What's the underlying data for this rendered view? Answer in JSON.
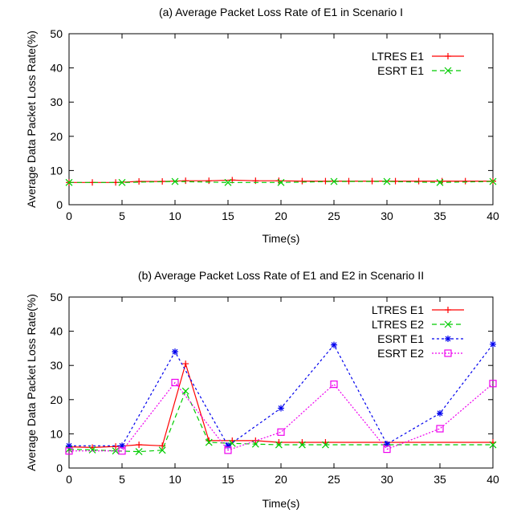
{
  "chart_data": [
    {
      "type": "line",
      "title": "(a) Average Packet Loss Rate of E1 in Scenario I",
      "xlabel": "Time(s)",
      "ylabel": "Average Data Packet Loss Rate(%)",
      "xlim": [
        0,
        40
      ],
      "ylim": [
        0,
        50
      ],
      "xticks": [
        "0",
        "5",
        "10",
        "15",
        "20",
        "25",
        "30",
        "35",
        "40"
      ],
      "yticks": [
        "0",
        "10",
        "20",
        "30",
        "40",
        "50"
      ],
      "grid": false,
      "legend_position": "top-right",
      "series": [
        {
          "name": "LTRES E1",
          "color": "#ff0000",
          "dash": "solid",
          "marker": "plus",
          "x": [
            0,
            2.2,
            4.4,
            6.6,
            8.8,
            11,
            13.2,
            15.4,
            17.6,
            19.8,
            22,
            24.2,
            26.4,
            28.6,
            30.8,
            33,
            35.2,
            37.4,
            40
          ],
          "y": [
            6.5,
            6.5,
            6.5,
            6.8,
            6.8,
            7.0,
            7.0,
            7.2,
            7.0,
            7.0,
            6.9,
            6.9,
            6.9,
            6.9,
            6.9,
            6.9,
            6.9,
            6.9,
            6.9
          ]
        },
        {
          "name": "ESRT E1",
          "color": "#00cc00",
          "dash": "dashed",
          "marker": "x",
          "x": [
            0,
            5,
            10,
            15,
            20,
            25,
            30,
            35,
            40
          ],
          "y": [
            6.5,
            6.5,
            6.8,
            6.5,
            6.5,
            6.8,
            6.8,
            6.5,
            6.8
          ]
        }
      ]
    },
    {
      "type": "line",
      "title": "(b) Average Packet Loss Rate of E1 and E2 in Scenario II",
      "xlabel": "Time(s)",
      "ylabel": "Average Data Packet Loss Rate(%)",
      "xlim": [
        0,
        40
      ],
      "ylim": [
        0,
        50
      ],
      "xticks": [
        "0",
        "5",
        "10",
        "15",
        "20",
        "25",
        "30",
        "35",
        "40"
      ],
      "yticks": [
        "0",
        "10",
        "20",
        "30",
        "40",
        "50"
      ],
      "grid": false,
      "legend_position": "top-right",
      "series": [
        {
          "name": "LTRES E1",
          "color": "#ff0000",
          "dash": "solid",
          "marker": "plus",
          "x": [
            0,
            2.2,
            4.4,
            6.6,
            8.8,
            11,
            13.2,
            15.4,
            17.6,
            19.8,
            22,
            24.2,
            40
          ],
          "y": [
            6.2,
            6.0,
            6.3,
            6.8,
            6.5,
            30.5,
            8.0,
            8.0,
            8.0,
            7.5,
            7.5,
            7.5,
            7.5
          ]
        },
        {
          "name": "LTRES E2",
          "color": "#00cc00",
          "dash": "dashed",
          "marker": "x",
          "x": [
            0,
            2.2,
            4.4,
            6.6,
            8.8,
            11,
            13.2,
            15.4,
            17.6,
            19.8,
            22,
            24.2,
            40
          ],
          "y": [
            5.5,
            5.3,
            5.0,
            4.8,
            5.2,
            22.5,
            7.5,
            7.2,
            7.0,
            6.8,
            6.8,
            6.8,
            6.8
          ]
        },
        {
          "name": "ESRT E1",
          "color": "#0000ee",
          "dash": "dotted",
          "marker": "asterisk",
          "x": [
            0,
            5,
            10,
            15,
            20,
            25,
            30,
            35,
            40
          ],
          "y": [
            6.5,
            6.5,
            34.0,
            6.5,
            17.5,
            36.0,
            7.0,
            16.0,
            36.2
          ]
        },
        {
          "name": "ESRT E2",
          "color": "#ee00ee",
          "dash": "dotted-fine",
          "marker": "square",
          "x": [
            0,
            5,
            10,
            15,
            20,
            25,
            30,
            35,
            40
          ],
          "y": [
            5.0,
            5.0,
            25.0,
            5.2,
            10.5,
            24.5,
            5.5,
            11.5,
            24.7
          ]
        }
      ]
    }
  ]
}
